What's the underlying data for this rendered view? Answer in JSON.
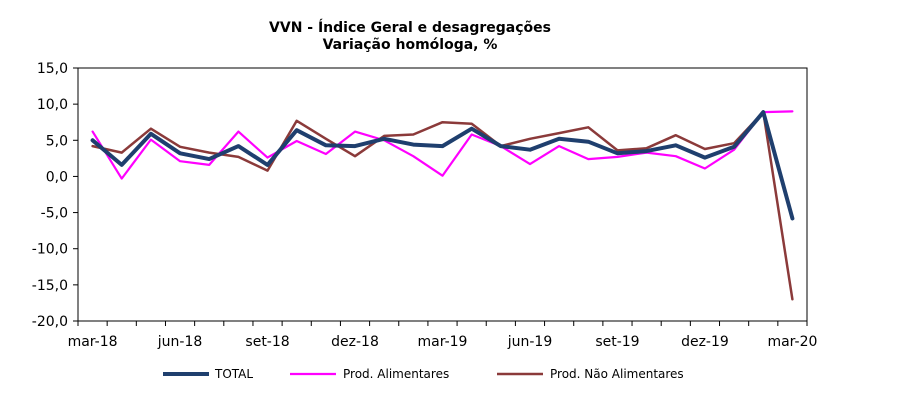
{
  "chart_data": {
    "type": "line",
    "title": "VVN - Índice Geral e desagregações",
    "subtitle": "Variação homóloga, %",
    "xlabel": "",
    "ylabel": "",
    "ylim": [
      -20,
      15
    ],
    "yticks": [
      "15,0",
      "10,0",
      "5,0",
      "0,0",
      "-5,0",
      "-10,0",
      "-15,0",
      "-20,0"
    ],
    "ytick_values": [
      15,
      10,
      5,
      0,
      -5,
      -10,
      -15,
      -20
    ],
    "x": [
      "mar-18",
      "abr-18",
      "mai-18",
      "jun-18",
      "jul-18",
      "ago-18",
      "set-18",
      "out-18",
      "nov-18",
      "dez-18",
      "jan-19",
      "fev-19",
      "mar-19",
      "abr-19",
      "mai-19",
      "jun-19",
      "jul-19",
      "ago-19",
      "set-19",
      "out-19",
      "nov-19",
      "dez-19",
      "jan-20",
      "fev-20",
      "mar-20"
    ],
    "xticks": [
      {
        "label": "mar-18",
        "index": 0
      },
      {
        "label": "jun-18",
        "index": 3
      },
      {
        "label": "set-18",
        "index": 6
      },
      {
        "label": "dez-18",
        "index": 9
      },
      {
        "label": "mar-19",
        "index": 12
      },
      {
        "label": "jun-19",
        "index": 15
      },
      {
        "label": "set-19",
        "index": 18
      },
      {
        "label": "dez-19",
        "index": 21
      },
      {
        "label": "mar-20",
        "index": 24
      }
    ],
    "grid": false,
    "legend_position": "bottom",
    "series": [
      {
        "name": "TOTAL",
        "color": "#1f3f6e",
        "values": [
          5.0,
          1.6,
          5.9,
          3.2,
          2.4,
          4.2,
          1.6,
          6.4,
          4.3,
          4.2,
          5.2,
          4.4,
          4.2,
          6.6,
          4.2,
          3.7,
          5.2,
          4.8,
          3.2,
          3.5,
          4.3,
          2.6,
          4.1,
          8.9,
          -5.8
        ]
      },
      {
        "name": "Prod. Alimentares",
        "color": "#ff00ff",
        "values": [
          6.2,
          -0.3,
          5.1,
          2.1,
          1.6,
          6.2,
          2.6,
          4.9,
          3.1,
          6.2,
          5.0,
          2.8,
          0.1,
          5.8,
          4.2,
          1.7,
          4.2,
          2.4,
          2.7,
          3.3,
          2.8,
          1.1,
          3.7,
          8.9,
          9.0
        ]
      },
      {
        "name": "Prod. Não Alimentares",
        "color": "#8b3a3a",
        "values": [
          4.2,
          3.3,
          6.6,
          4.1,
          3.3,
          2.7,
          0.8,
          7.7,
          5.2,
          2.8,
          5.6,
          5.8,
          7.5,
          7.3,
          4.2,
          5.2,
          6.0,
          6.8,
          3.6,
          3.9,
          5.7,
          3.8,
          4.6,
          8.9,
          -17.0
        ]
      }
    ]
  }
}
